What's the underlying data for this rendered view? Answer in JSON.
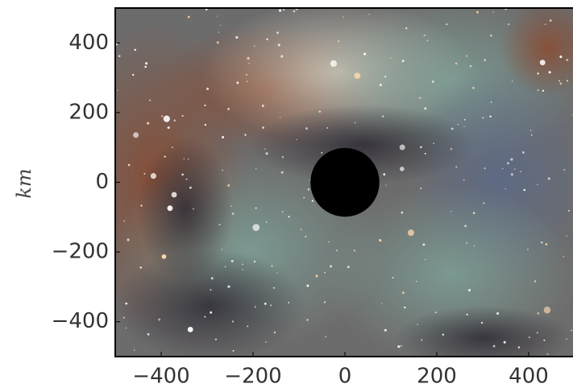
{
  "chart_data": {
    "type": "scatter",
    "y_label": "km",
    "series": [
      {
        "x": [
          0
        ],
        "values": [
          0
        ],
        "radius": [
          75
        ],
        "color": "#000000"
      }
    ],
    "xlim": [
      -500,
      500
    ],
    "ylim": [
      -500,
      500
    ],
    "xticks": [
      {
        "value": -400,
        "label": "−400"
      },
      {
        "value": -200,
        "label": "−200"
      },
      0,
      200,
      400
    ],
    "yticks": [
      {
        "value": -400,
        "label": "−400"
      },
      {
        "value": -200,
        "label": "−200"
      },
      0,
      200,
      400
    ]
  }
}
